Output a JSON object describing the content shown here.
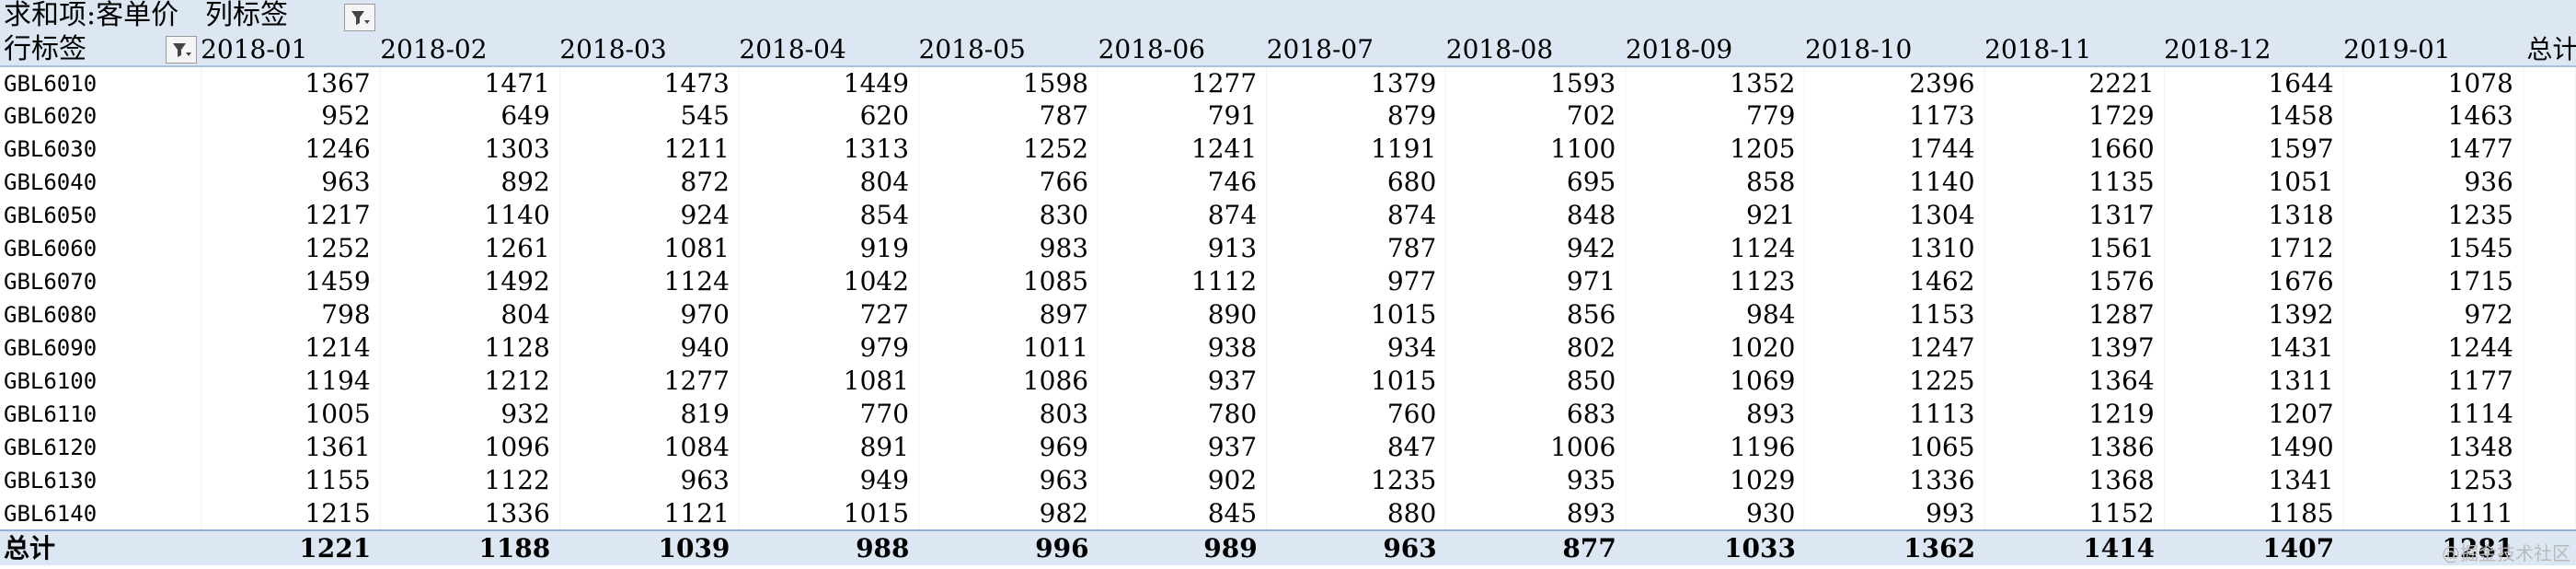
{
  "pivot": {
    "value_field": "求和项:客单价",
    "column_labels": "列标签",
    "row_labels": "行标签",
    "grand_total_label": "总计",
    "columns": [
      "2018-01",
      "2018-02",
      "2018-03",
      "2018-04",
      "2018-05",
      "2018-06",
      "2018-07",
      "2018-08",
      "2018-09",
      "2018-10",
      "2018-11",
      "2018-12",
      "2019-01"
    ],
    "total_column_header": "总计",
    "rows": [
      {
        "label": "GBL6010",
        "values": [
          "1367",
          "1471",
          "1473",
          "1449",
          "1598",
          "1277",
          "1379",
          "1593",
          "1352",
          "2396",
          "2221",
          "1644",
          "1078"
        ]
      },
      {
        "label": "GBL6020",
        "values": [
          "952",
          "649",
          "545",
          "620",
          "787",
          "791",
          "879",
          "702",
          "779",
          "1173",
          "1729",
          "1458",
          "1463"
        ]
      },
      {
        "label": "GBL6030",
        "values": [
          "1246",
          "1303",
          "1211",
          "1313",
          "1252",
          "1241",
          "1191",
          "1100",
          "1205",
          "1744",
          "1660",
          "1597",
          "1477"
        ]
      },
      {
        "label": "GBL6040",
        "values": [
          "963",
          "892",
          "872",
          "804",
          "766",
          "746",
          "680",
          "695",
          "858",
          "1140",
          "1135",
          "1051",
          "936"
        ]
      },
      {
        "label": "GBL6050",
        "values": [
          "1217",
          "1140",
          "924",
          "854",
          "830",
          "874",
          "874",
          "848",
          "921",
          "1304",
          "1317",
          "1318",
          "1235"
        ]
      },
      {
        "label": "GBL6060",
        "values": [
          "1252",
          "1261",
          "1081",
          "919",
          "983",
          "913",
          "787",
          "942",
          "1124",
          "1310",
          "1561",
          "1712",
          "1545"
        ]
      },
      {
        "label": "GBL6070",
        "values": [
          "1459",
          "1492",
          "1124",
          "1042",
          "1085",
          "1112",
          "977",
          "971",
          "1123",
          "1462",
          "1576",
          "1676",
          "1715"
        ]
      },
      {
        "label": "GBL6080",
        "values": [
          "798",
          "804",
          "970",
          "727",
          "897",
          "890",
          "1015",
          "856",
          "984",
          "1153",
          "1287",
          "1392",
          "972"
        ]
      },
      {
        "label": "GBL6090",
        "values": [
          "1214",
          "1128",
          "940",
          "979",
          "1011",
          "938",
          "934",
          "802",
          "1020",
          "1247",
          "1397",
          "1431",
          "1244"
        ]
      },
      {
        "label": "GBL6100",
        "values": [
          "1194",
          "1212",
          "1277",
          "1081",
          "1086",
          "937",
          "1015",
          "850",
          "1069",
          "1225",
          "1364",
          "1311",
          "1177"
        ]
      },
      {
        "label": "GBL6110",
        "values": [
          "1005",
          "932",
          "819",
          "770",
          "803",
          "780",
          "760",
          "683",
          "893",
          "1113",
          "1219",
          "1207",
          "1114"
        ]
      },
      {
        "label": "GBL6120",
        "values": [
          "1361",
          "1096",
          "1084",
          "891",
          "969",
          "937",
          "847",
          "1006",
          "1196",
          "1065",
          "1386",
          "1490",
          "1348"
        ]
      },
      {
        "label": "GBL6130",
        "values": [
          "1155",
          "1122",
          "963",
          "949",
          "963",
          "902",
          "1235",
          "935",
          "1029",
          "1336",
          "1368",
          "1341",
          "1253"
        ]
      },
      {
        "label": "GBL6140",
        "values": [
          "1215",
          "1336",
          "1121",
          "1015",
          "982",
          "845",
          "880",
          "893",
          "930",
          "993",
          "1152",
          "1185",
          "1111"
        ]
      }
    ],
    "grand_total_values": [
      "1221",
      "1188",
      "1039",
      "988",
      "996",
      "989",
      "963",
      "877",
      "1033",
      "1362",
      "1414",
      "1407",
      "1281"
    ]
  },
  "icons": {
    "column_filter": "filter-dropdown-icon",
    "row_filter": "filter-dropdown-icon"
  },
  "watermark": "@掘金技术社区",
  "colors": {
    "header_bg": "#dde7f3",
    "total_border": "#8fb0db"
  }
}
